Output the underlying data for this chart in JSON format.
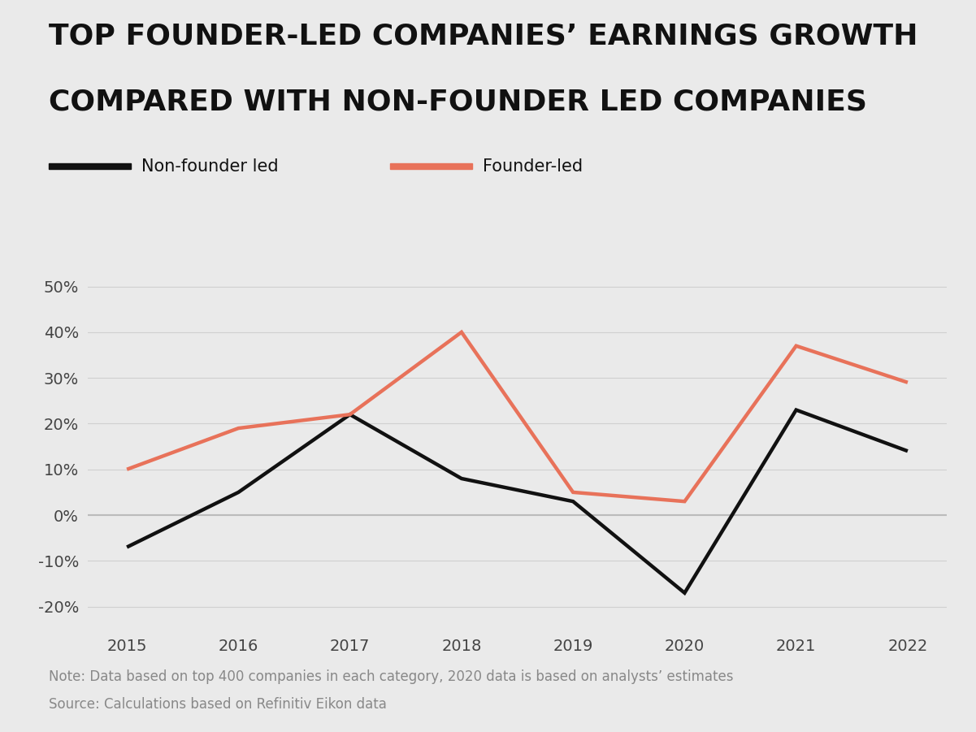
{
  "title_line1": "TOP FOUNDER-LED COMPANIES’ EARNINGS GROWTH",
  "title_line2": "COMPARED WITH NON-FOUNDER LED COMPANIES",
  "years": [
    2015,
    2016,
    2017,
    2018,
    2019,
    2020,
    2021,
    2022
  ],
  "non_founder": [
    -7,
    5,
    22,
    8,
    3,
    -17,
    23,
    14
  ],
  "founder": [
    10,
    19,
    22,
    40,
    5,
    3,
    37,
    29
  ],
  "non_founder_color": "#111111",
  "founder_color": "#E8725A",
  "background_color": "#EAEAEA",
  "line_width": 3.2,
  "ylim": [
    -25,
    55
  ],
  "yticks": [
    -20,
    -10,
    0,
    10,
    20,
    30,
    40,
    50
  ],
  "ytick_labels": [
    "-20%",
    "-10%",
    "0%",
    "10%",
    "20%",
    "30%",
    "40%",
    "50%"
  ],
  "note_line1": "Note: Data based on top 400 companies in each category, 2020 data is based on analysts’ estimates",
  "note_line2": "Source: Calculations based on Refinitiv Eikon data",
  "legend_non_founder": "Non-founder led",
  "legend_founder": "Founder-led",
  "grid_color": "#D0D0D0",
  "zero_line_color": "#BBBBBB",
  "title_fontsize": 26,
  "tick_fontsize": 14,
  "note_fontsize": 12,
  "legend_fontsize": 15
}
